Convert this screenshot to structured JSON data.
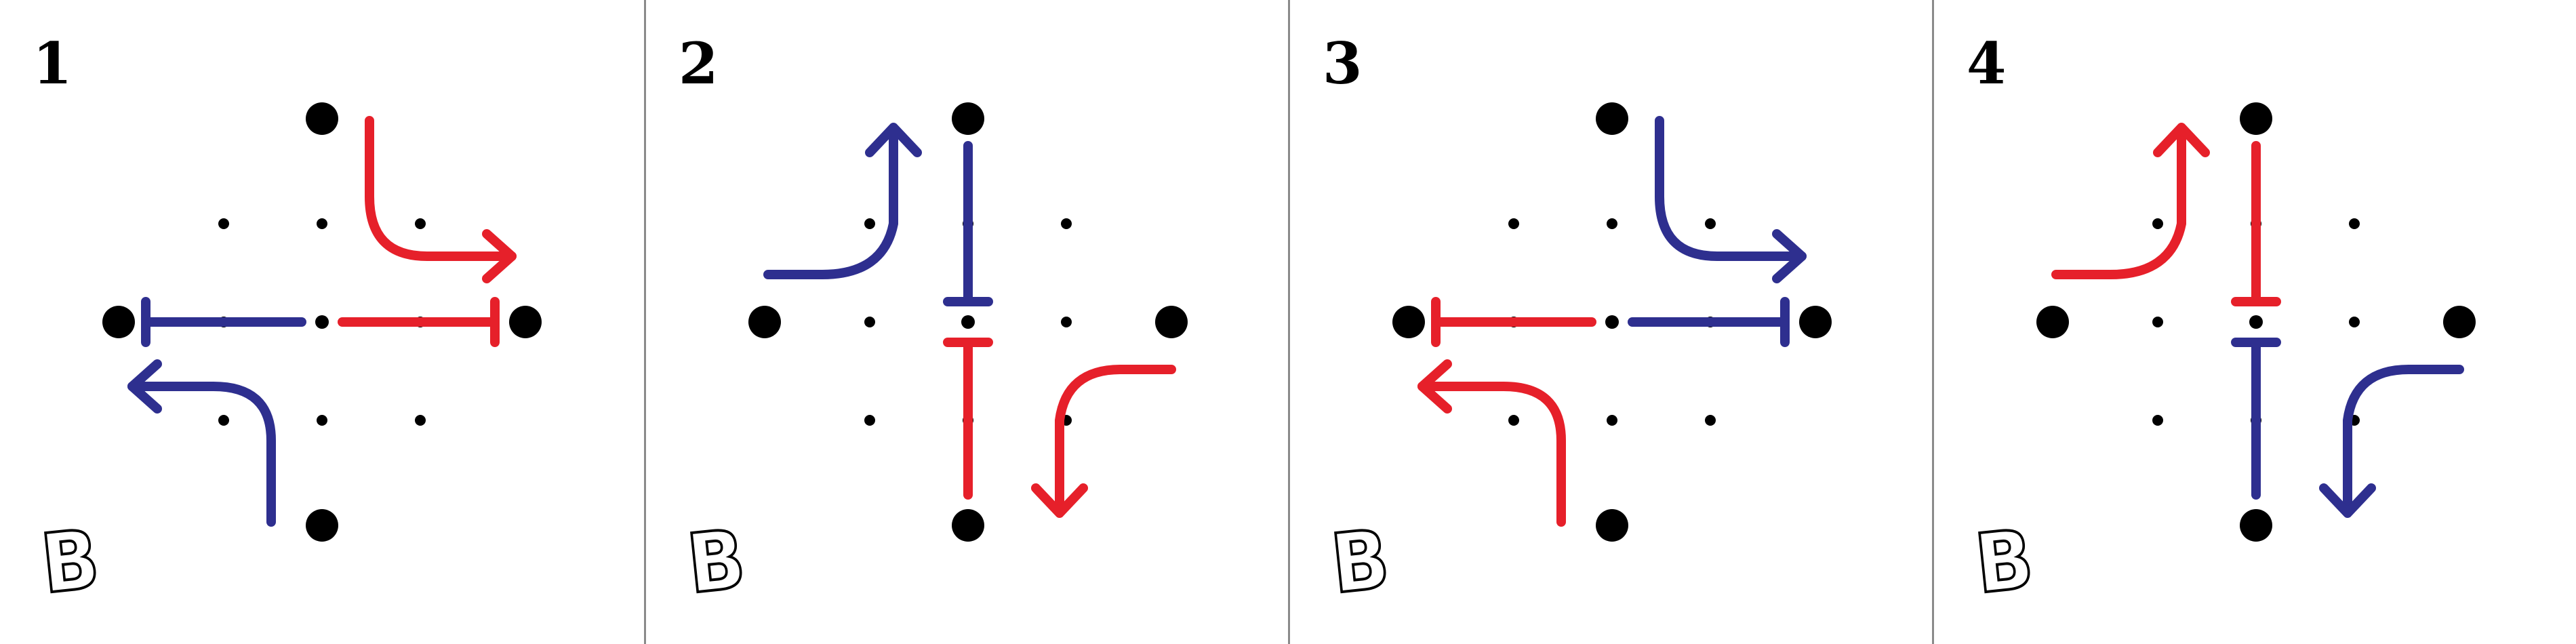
{
  "colors": {
    "red": "#e6202a",
    "blue": "#2e2f8f",
    "dot": "#000000",
    "divider": "#8a8a8a"
  },
  "panels": [
    {
      "number": "1",
      "logo": "B"
    },
    {
      "number": "2",
      "logo": "B"
    },
    {
      "number": "3",
      "logo": "B"
    },
    {
      "number": "4",
      "logo": "B"
    }
  ]
}
